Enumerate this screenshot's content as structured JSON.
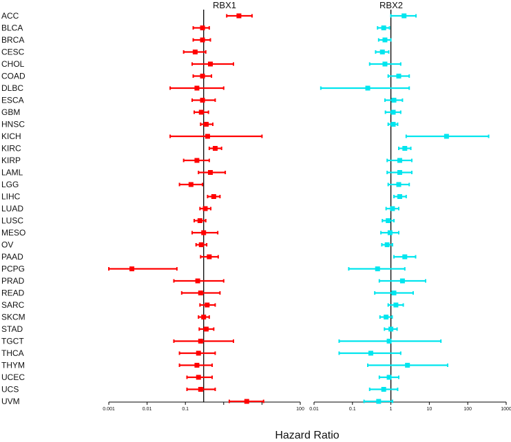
{
  "chart_data": {
    "type": "forest",
    "xlabel": "Hazard Ratio",
    "scale": "log10",
    "colors": {
      "RBX1": "#ff0000",
      "RBX2": "#00e5ee",
      "line": "#000000"
    },
    "reference_value": 1,
    "cancer_types": [
      "ACC",
      "BLCA",
      "BRCA",
      "CESC",
      "CHOL",
      "COAD",
      "DLBC",
      "ESCA",
      "GBM",
      "HNSC",
      "KICH",
      "KIRC",
      "KIRP",
      "LAML",
      "LGG",
      "LIHC",
      "LUAD",
      "LUSC",
      "MESO",
      "OV",
      "PAAD",
      "PCPG",
      "PRAD",
      "READ",
      "SARC",
      "SKCM",
      "STAD",
      "TGCT",
      "THCA",
      "THYM",
      "UCEC",
      "UCS",
      "UVM"
    ],
    "panels": [
      {
        "name": "RBX1",
        "xlim": [
          0.001,
          100
        ],
        "reference_line": 0.3,
        "ticks": [
          {
            "v": 0.001,
            "label": "0.001"
          },
          {
            "v": 0.01,
            "label": "0.01"
          },
          {
            "v": 0.1,
            "label": "0.1"
          },
          {
            "v": 100,
            "label": "100"
          }
        ],
        "hr": [
          2.5,
          0.28,
          0.28,
          0.18,
          0.45,
          0.28,
          0.2,
          0.28,
          0.26,
          0.35,
          0.38,
          0.6,
          0.2,
          0.45,
          0.14,
          0.55,
          0.33,
          0.24,
          0.3,
          0.26,
          0.42,
          0.004,
          0.21,
          0.25,
          0.37,
          0.3,
          0.35,
          0.25,
          0.22,
          0.2,
          0.22,
          0.25,
          4.0
        ],
        "lower": [
          1.2,
          0.16,
          0.16,
          0.09,
          0.15,
          0.16,
          0.04,
          0.15,
          0.17,
          0.25,
          0.04,
          0.42,
          0.09,
          0.22,
          0.07,
          0.38,
          0.24,
          0.17,
          0.15,
          0.19,
          0.25,
          0.0009,
          0.05,
          0.08,
          0.24,
          0.22,
          0.23,
          0.05,
          0.07,
          0.07,
          0.11,
          0.11,
          1.4
        ],
        "upper": [
          5.5,
          0.42,
          0.45,
          0.34,
          1.8,
          0.48,
          1.0,
          0.6,
          0.4,
          0.52,
          10.0,
          0.88,
          0.42,
          1.1,
          0.28,
          0.8,
          0.46,
          0.34,
          0.7,
          0.36,
          0.72,
          0.06,
          1.0,
          0.8,
          0.6,
          0.42,
          0.55,
          1.8,
          0.6,
          0.5,
          0.5,
          0.6,
          11.0
        ]
      },
      {
        "name": "RBX2",
        "xlim": [
          0.01,
          1000
        ],
        "reference_line": 1,
        "ticks": [
          {
            "v": 0.01,
            "label": "0.01"
          },
          {
            "v": 0.1,
            "label": "0.1"
          },
          {
            "v": 1,
            "label": "1"
          },
          {
            "v": 10,
            "label": "10"
          },
          {
            "v": 100,
            "label": "100"
          },
          {
            "v": 1000,
            "label": "1000"
          }
        ],
        "hr": [
          2.2,
          0.65,
          0.7,
          0.6,
          0.7,
          1.6,
          0.25,
          1.2,
          1.15,
          1.15,
          28.0,
          2.3,
          1.7,
          1.7,
          1.6,
          1.7,
          1.1,
          0.85,
          0.95,
          0.8,
          2.3,
          0.45,
          2.0,
          1.2,
          1.35,
          0.75,
          1.0,
          0.9,
          0.3,
          2.7,
          0.9,
          0.65,
          0.48
        ],
        "lower": [
          1.0,
          0.45,
          0.48,
          0.4,
          0.28,
          0.85,
          0.015,
          0.7,
          0.72,
          0.85,
          2.5,
          1.6,
          0.8,
          0.8,
          0.85,
          1.2,
          0.75,
          0.6,
          0.55,
          0.58,
          1.2,
          0.08,
          0.5,
          0.38,
          0.85,
          0.52,
          0.68,
          0.045,
          0.045,
          0.25,
          0.5,
          0.28,
          0.2
        ],
        "upper": [
          4.5,
          0.92,
          1.0,
          0.88,
          1.8,
          3.0,
          3.0,
          2.0,
          1.8,
          1.5,
          350.0,
          3.3,
          3.5,
          3.5,
          3.0,
          2.5,
          1.6,
          1.2,
          1.6,
          1.1,
          4.4,
          2.3,
          8.0,
          3.8,
          2.1,
          1.08,
          1.45,
          20.0,
          1.8,
          30.0,
          1.6,
          1.5,
          1.1
        ]
      }
    ]
  }
}
